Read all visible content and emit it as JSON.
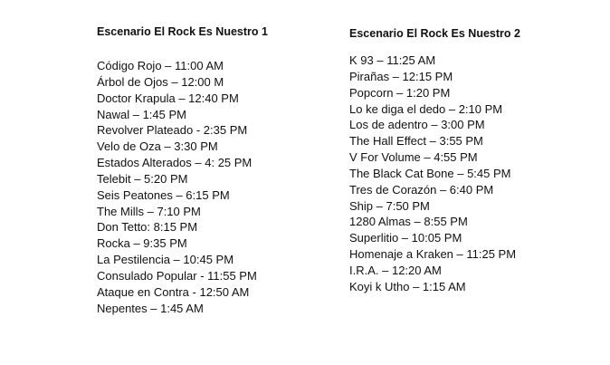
{
  "stage1": {
    "title": "Escenario El Rock Es Nuestro 1",
    "items": [
      "Código Rojo – 11:00 AM",
      "Árbol de Ojos – 12:00 M",
      "Doctor Krapula – 12:40 PM",
      "Nawal – 1:45 PM",
      "Revolver Plateado - 2:35 PM",
      "Velo de Oza – 3:30 PM",
      "Estados Alterados – 4: 25 PM",
      "Telebit – 5:20 PM",
      "Seis Peatones – 6:15 PM",
      "The Mills – 7:10 PM",
      "Don Tetto: 8:15 PM",
      "Rocka – 9:35 PM",
      "La Pestilencia – 10:45 PM",
      "Consulado Popular - 11:55 PM",
      "Ataque en Contra - 12:50 AM",
      "Nepentes – 1:45 AM"
    ]
  },
  "stage2": {
    "title": "Escenario El Rock Es Nuestro 2",
    "items": [
      "K 93 – 11:25 AM",
      "Pirañas – 12:15 PM",
      "Popcorn – 1:20 PM",
      "Lo ke diga el dedo – 2:10 PM",
      "Los de adentro – 3:00 PM",
      "The Hall Effect – 3:55 PM",
      "V For Volume – 4:55 PM",
      "The Black Cat Bone – 5:45 PM",
      "Tres de Corazón – 6:40 PM",
      "Ship – 7:50 PM",
      "1280 Almas – 8:55 PM",
      "Superlitio – 10:05 PM",
      "Homenaje a Kraken – 11:25 PM",
      "I.R.A. – 12:20 AM",
      "Koyi k Utho – 1:15 AM"
    ]
  }
}
